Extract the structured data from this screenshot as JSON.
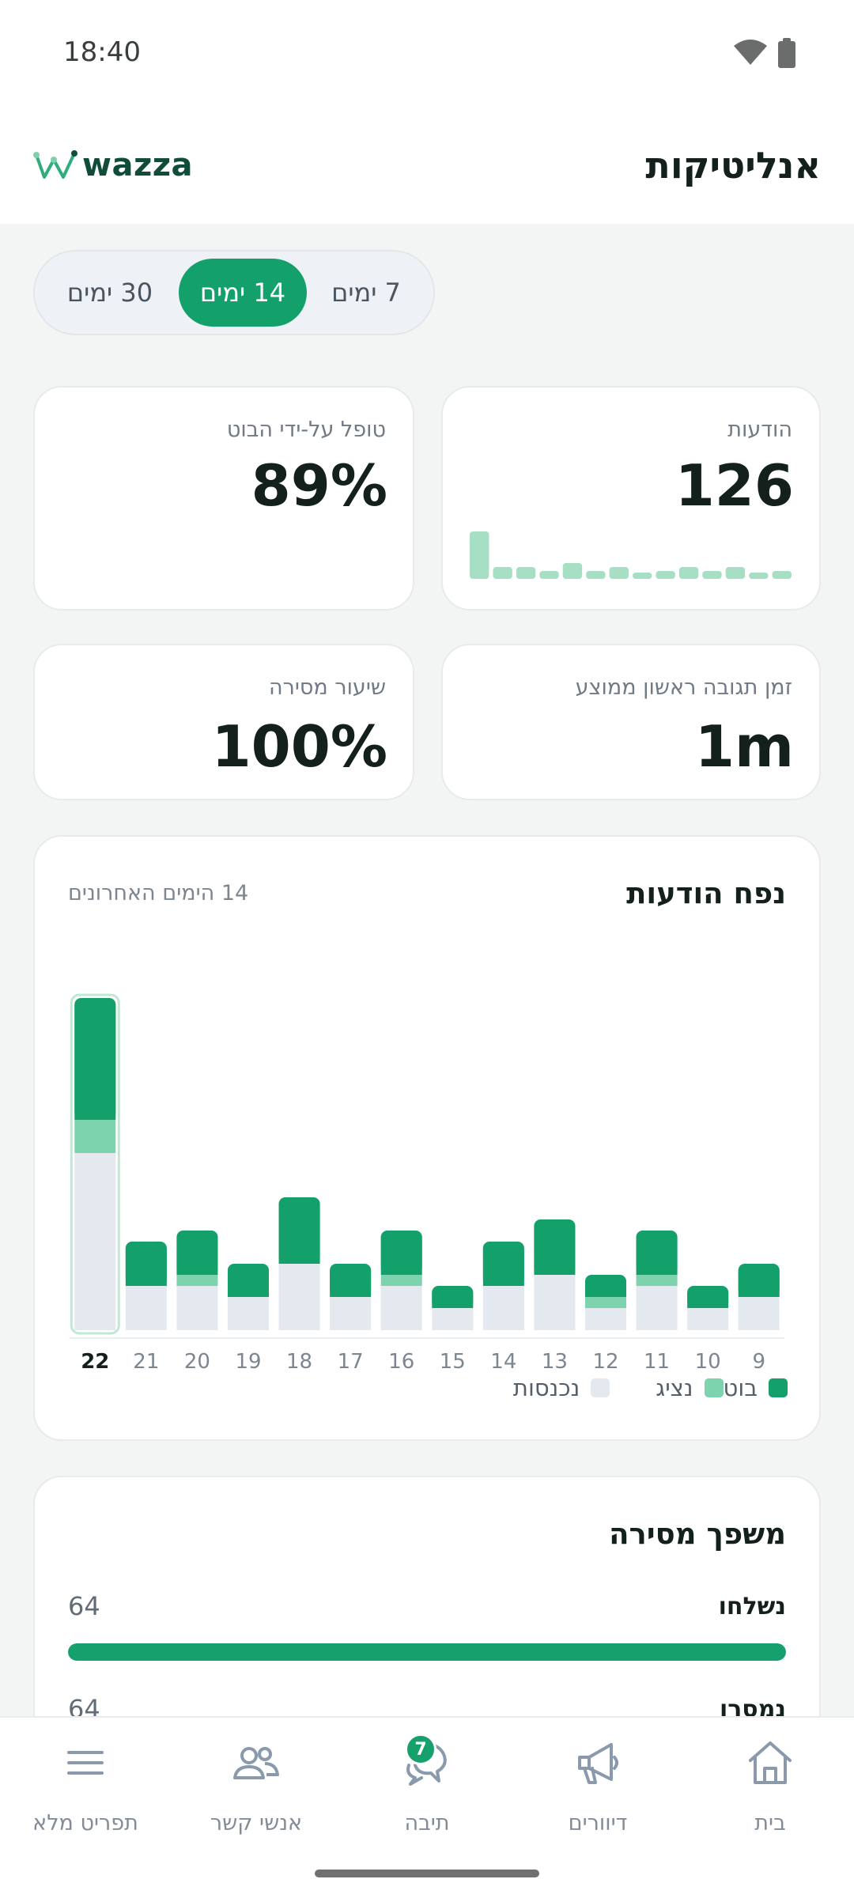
{
  "status_bar": {
    "time": "18:40"
  },
  "app_bar": {
    "title": "אנליטיקות",
    "logo_text": "wazza"
  },
  "period_tabs": [
    {
      "label": "7 ימים",
      "active": false
    },
    {
      "label": "14 ימים",
      "active": true
    },
    {
      "label": "30 ימים",
      "active": false
    }
  ],
  "stats": {
    "messages": {
      "label": "הודעות",
      "value": "126"
    },
    "bot_handled": {
      "label": "טופל על-ידי הבוט",
      "value": "89%"
    },
    "first_response": {
      "label": "זמן תגובה ראשון ממוצע",
      "value": "1m"
    },
    "delivery_rate": {
      "label": "שיעור מסירה",
      "value": "100%"
    }
  },
  "colors": {
    "accent": "#14a06b",
    "agent": "#7dd3ad",
    "incoming": "#e4e9ef",
    "spark": "#a7dfc5"
  },
  "chart_data": {
    "type": "bar",
    "title": "נפח הודעות",
    "subtitle": "14 הימים האחרונים",
    "categories": [
      "22",
      "21",
      "20",
      "19",
      "18",
      "17",
      "16",
      "15",
      "14",
      "13",
      "12",
      "11",
      "10",
      "9"
    ],
    "highlighted_category": "22",
    "stacked": true,
    "series": [
      {
        "name": "נכנסות",
        "color": "#e4e9ef",
        "values": [
          16,
          4,
          4,
          3,
          6,
          3,
          4,
          2,
          4,
          5,
          2,
          4,
          2,
          3
        ]
      },
      {
        "name": "נציג",
        "color": "#7dd3ad",
        "values": [
          3,
          0,
          1,
          0,
          0,
          0,
          1,
          0,
          0,
          0,
          1,
          1,
          0,
          0
        ]
      },
      {
        "name": "בוט",
        "color": "#14a06b",
        "values": [
          11,
          4,
          4,
          3,
          6,
          3,
          4,
          2,
          4,
          5,
          2,
          4,
          2,
          3
        ]
      }
    ],
    "legend_order": [
      "בוט",
      "נציג",
      "נכנסות"
    ],
    "legend_position": "bottom-right",
    "grid": false
  },
  "messages_sparkline": [
    12,
    3,
    3,
    2,
    4,
    2,
    3,
    1,
    2,
    3,
    2,
    3,
    1,
    2
  ],
  "delivery_funnel": {
    "title": "משפך מסירה",
    "rows": [
      {
        "label": "נשלחו",
        "value": "64",
        "fraction": 1.0
      },
      {
        "label": "נמסרו",
        "value": "64",
        "fraction": 1.0
      }
    ]
  },
  "nav": [
    {
      "key": "home",
      "label": "בית",
      "icon": "home-icon"
    },
    {
      "key": "broadcasts",
      "label": "דיוורים",
      "icon": "megaphone-icon"
    },
    {
      "key": "inbox",
      "label": "תיבה",
      "icon": "chat-bubbles-icon",
      "badge": "7"
    },
    {
      "key": "contacts",
      "label": "אנשי קשר",
      "icon": "people-icon"
    },
    {
      "key": "menu",
      "label": "תפריט מלא",
      "icon": "hamburger-icon"
    }
  ]
}
